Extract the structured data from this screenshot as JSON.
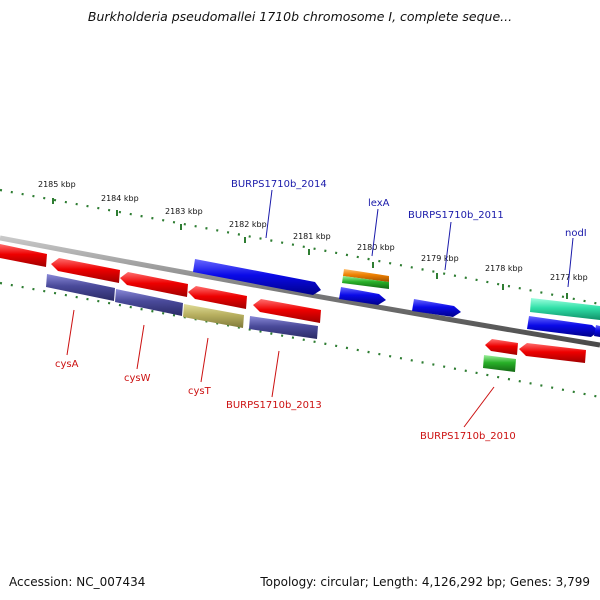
{
  "title": "Burkholderia pseudomallei 1710b chromosome I, complete seque...",
  "footer": {
    "accession": "Accession: NC_007434",
    "summary": "Topology: circular; Length: 4,126,292 bp; Genes: 3,799"
  },
  "colors": {
    "background": "#ffffff",
    "backbone": "#8c8c8c",
    "ticks": "#2e7d32",
    "label_top": "#1a1aaa",
    "label_bottom": "#cc1111"
  },
  "scale_labels": [
    "2185 kbp",
    "2184 kbp",
    "2183 kbp",
    "2182 kbp",
    "2181 kbp",
    "2180 kbp",
    "2179 kbp",
    "2178 kbp",
    "2177 kbp"
  ],
  "genes_top": [
    {
      "id": "BURPS1710b_2014",
      "label": "BURPS1710b_2014",
      "color": "#1010e0"
    },
    {
      "id": "lexA",
      "label": "lexA",
      "color": "#1010e0"
    },
    {
      "id": "BURPS1710b_2011",
      "label": "BURPS1710b_2011",
      "color": "#1010e0"
    },
    {
      "id": "nodI",
      "label": "nodI",
      "color": "#1010e0"
    }
  ],
  "genes_bottom": [
    {
      "id": "cysA",
      "label": "cysA",
      "color": "#ee1111"
    },
    {
      "id": "cysW",
      "label": "cysW",
      "color": "#ee1111"
    },
    {
      "id": "cysT",
      "label": "cysT",
      "color": "#ee1111"
    },
    {
      "id": "BURPS1710b_2013",
      "label": "BURPS1710b_2013",
      "color": "#ee1111"
    },
    {
      "id": "BURPS1710b_2010",
      "label": "BURPS1710b_2010",
      "color": "#ee1111"
    }
  ]
}
